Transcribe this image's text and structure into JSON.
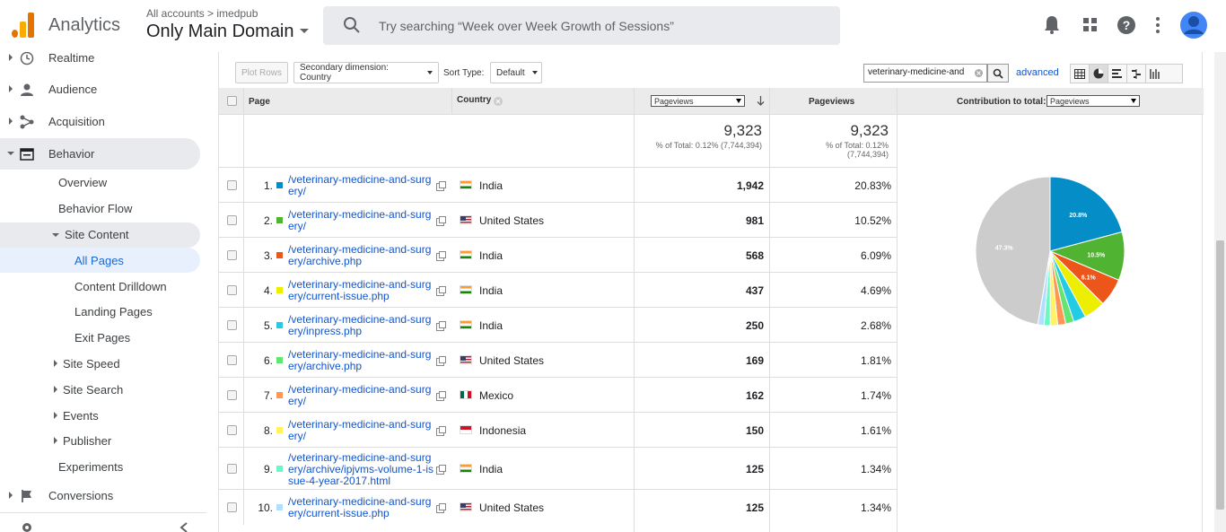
{
  "header": {
    "app_title": "Analytics",
    "account_crumb": "All accounts > imedpub",
    "account_name": "Only Main Domain",
    "search_placeholder": "Try searching “Week over Week Growth of Sessions”"
  },
  "sidebar": {
    "top": [
      {
        "label": "Realtime",
        "icon": "clock-icon"
      },
      {
        "label": "Audience",
        "icon": "person-icon"
      },
      {
        "label": "Acquisition",
        "icon": "acquisition-icon"
      },
      {
        "label": "Behavior",
        "icon": "behavior-icon"
      }
    ],
    "behavior_items": [
      "Overview",
      "Behavior Flow"
    ],
    "site_content_label": "Site Content",
    "site_content_items": [
      "All Pages",
      "Content Drilldown",
      "Landing Pages",
      "Exit Pages"
    ],
    "more_items": [
      "Site Speed",
      "Site Search",
      "Events",
      "Publisher"
    ],
    "experiments": "Experiments",
    "conversions": "Conversions"
  },
  "toolbar": {
    "plot_rows": "Plot Rows",
    "secondary_dimension": "Secondary dimension: Country",
    "sort_type_label": "Sort Type:",
    "sort_type_value": "Default",
    "filter_value": "veterinary-medicine-and",
    "advanced": "advanced"
  },
  "table": {
    "col_page": "Page",
    "col_country": "Country",
    "metric_select": "Pageviews",
    "col_pageviews": "Pageviews",
    "contribution_label": "Contribution to total:",
    "contribution_select": "Pageviews",
    "totals": {
      "value1": "9,323",
      "sub1": "% of Total: 0.12% (7,744,394)",
      "value2": "9,323",
      "sub2a": "% of Total: 0.12%",
      "sub2b": "(7,744,394)"
    },
    "rows": [
      {
        "idx": "1.",
        "page": "/veterinary-medicine-and-surgery/",
        "country": "India",
        "pageviews": "1,942",
        "pct": "20.83%",
        "color": "#058dc7"
      },
      {
        "idx": "2.",
        "page": "/veterinary-medicine-and-surgery/",
        "country": "United States",
        "pageviews": "981",
        "pct": "10.52%",
        "color": "#50b432"
      },
      {
        "idx": "3.",
        "page": "/veterinary-medicine-and-surgery/archive.php",
        "country": "India",
        "pageviews": "568",
        "pct": "6.09%",
        "color": "#ed561b"
      },
      {
        "idx": "4.",
        "page": "/veterinary-medicine-and-surgery/current-issue.php",
        "country": "India",
        "pageviews": "437",
        "pct": "4.69%",
        "color": "#edef00"
      },
      {
        "idx": "5.",
        "page": "/veterinary-medicine-and-surgery/inpress.php",
        "country": "India",
        "pageviews": "250",
        "pct": "2.68%",
        "color": "#24cbe5"
      },
      {
        "idx": "6.",
        "page": "/veterinary-medicine-and-surgery/archive.php",
        "country": "United States",
        "pageviews": "169",
        "pct": "1.81%",
        "color": "#64e572"
      },
      {
        "idx": "7.",
        "page": "/veterinary-medicine-and-surgery/",
        "country": "Mexico",
        "pageviews": "162",
        "pct": "1.74%",
        "color": "#ff9655"
      },
      {
        "idx": "8.",
        "page": "/veterinary-medicine-and-surgery/",
        "country": "Indonesia",
        "pageviews": "150",
        "pct": "1.61%",
        "color": "#fff263"
      },
      {
        "idx": "9.",
        "page": "/veterinary-medicine-and-surgery/archive/ipjvms-volume-1-issue-4-year-2017.html",
        "country": "India",
        "pageviews": "125",
        "pct": "1.34%",
        "color": "#6af9c4"
      },
      {
        "idx": "10.",
        "page": "/veterinary-medicine-and-surgery/current-issue.php",
        "country": "United States",
        "pageviews": "125",
        "pct": "1.34%",
        "color": "#b2deff"
      }
    ]
  },
  "chart_data": {
    "type": "pie",
    "slices": [
      20.83,
      10.52,
      6.09,
      4.69,
      2.68,
      1.81,
      1.74,
      1.61,
      1.34,
      1.34,
      47.35
    ],
    "colors": [
      "#058dc7",
      "#50b432",
      "#ed561b",
      "#edef00",
      "#24cbe5",
      "#64e572",
      "#ff9655",
      "#fff263",
      "#6af9c4",
      "#b2deff",
      "#cccccc"
    ],
    "labels": [
      "20.8%",
      "10.5%",
      "6.1%",
      "",
      "",
      "",
      "",
      "",
      "",
      "",
      "47.3%"
    ]
  }
}
